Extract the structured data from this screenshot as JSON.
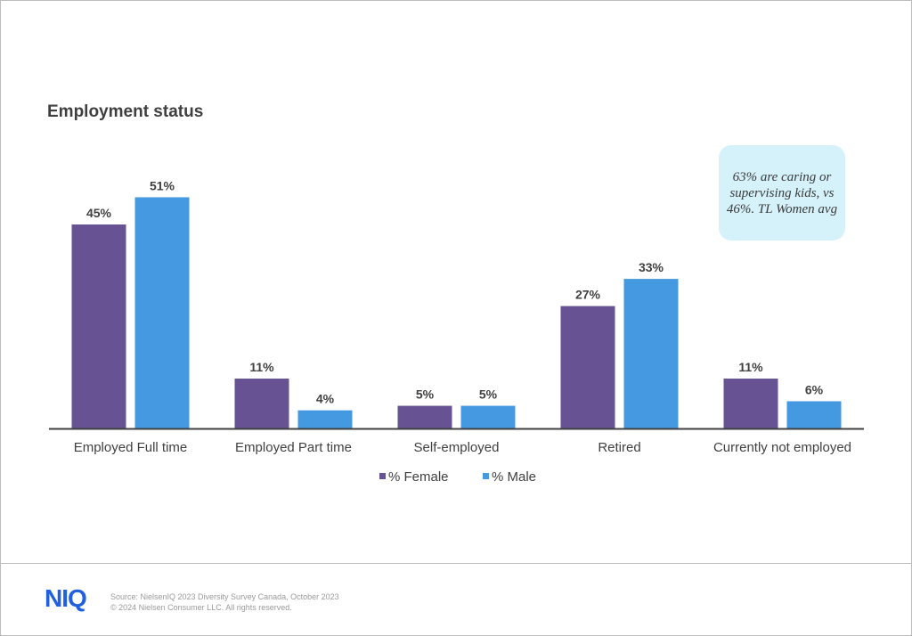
{
  "slide": {
    "title": "Employment status",
    "callout": "63% are caring or supervising kids, vs 46%. TL Women avg"
  },
  "footer": {
    "logo": "NIQ",
    "source": "Source: NielsenIQ 2023 Diversity Survey Canada, October 2023",
    "copyright": "© 2024 Nielsen Consumer LLC. All rights reserved."
  },
  "chart_data": {
    "type": "bar",
    "title": "Employment status",
    "categories": [
      "Employed Full time",
      "Employed Part time",
      "Self-employed",
      "Retired",
      "Currently not employed"
    ],
    "series": [
      {
        "name": "% Female",
        "values": [
          45,
          11,
          5,
          27,
          11
        ],
        "color": "#675393",
        "labels": [
          "45%",
          "11%",
          "5%",
          "27%",
          "11%"
        ]
      },
      {
        "name": "% Male",
        "values": [
          51,
          4,
          5,
          33,
          6
        ],
        "color": "#4599e1",
        "labels": [
          "51%",
          "4%",
          "5%",
          "33%",
          "6%"
        ]
      }
    ],
    "ylim": [
      0,
      60
    ],
    "legend": "bottom",
    "grid": false
  }
}
